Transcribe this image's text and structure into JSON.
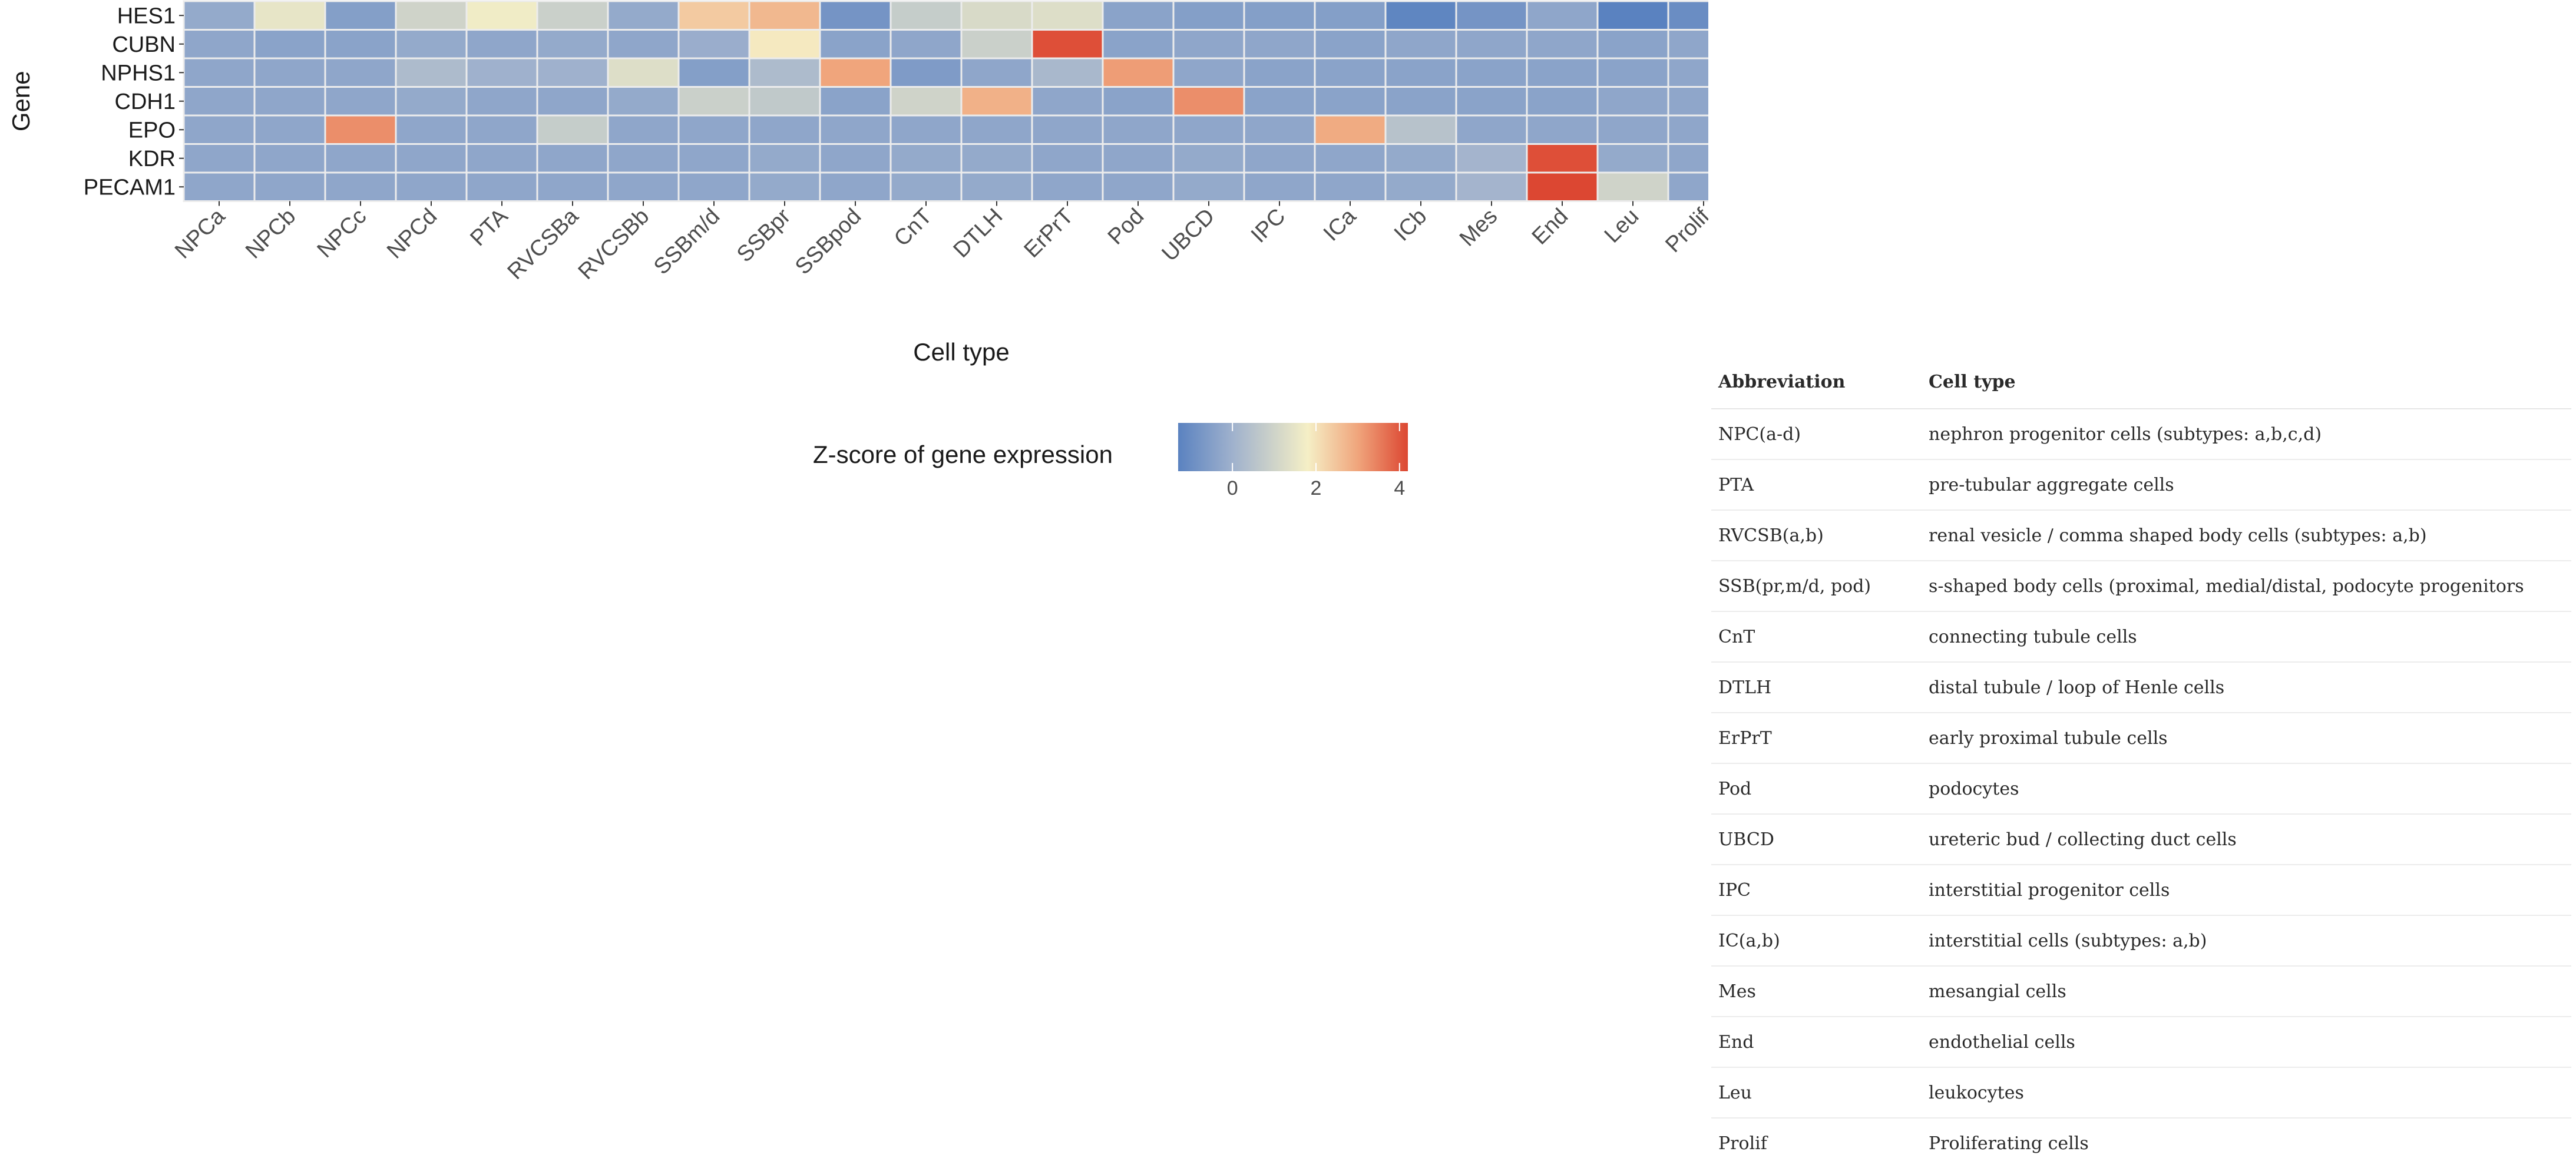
{
  "chart_data": {
    "type": "heatmap",
    "title": "",
    "xlabel": "Cell type",
    "ylabel": "Gene",
    "x_categories": [
      "NPCa",
      "NPCb",
      "NPCc",
      "NPCd",
      "PTA",
      "RVCSBa",
      "RVCSBb",
      "SSBm/d",
      "SSBpr",
      "SSBpod",
      "CnT",
      "DTLH",
      "ErPrT",
      "Pod",
      "UBCD",
      "IPC",
      "ICa",
      "ICb",
      "Mes",
      "End",
      "Leu",
      "Prolif"
    ],
    "y_categories": [
      "HES1",
      "CUBN",
      "NPHS1",
      "CDH1",
      "EPO",
      "KDR",
      "PECAM1"
    ],
    "values": [
      [
        -0.2,
        1.5,
        -0.5,
        1.0,
        1.7,
        0.9,
        -0.2,
        2.4,
        2.7,
        -0.8,
        0.8,
        1.2,
        1.3,
        -0.4,
        -0.5,
        -0.5,
        -0.5,
        -1.2,
        -0.8,
        -0.3,
        -1.3,
        -1.0
      ],
      [
        -0.3,
        -0.4,
        -0.4,
        -0.2,
        -0.3,
        -0.2,
        -0.3,
        -0.1,
        1.9,
        -0.4,
        -0.3,
        0.9,
        4.1,
        -0.4,
        -0.3,
        -0.3,
        -0.4,
        -0.3,
        -0.3,
        -0.3,
        -0.4,
        -0.3
      ],
      [
        -0.3,
        -0.3,
        -0.3,
        0.3,
        0.0,
        0.0,
        1.3,
        -0.5,
        0.3,
        3.0,
        -0.6,
        -0.3,
        0.2,
        3.1,
        -0.3,
        -0.4,
        -0.4,
        -0.4,
        -0.4,
        -0.4,
        -0.4,
        -0.3
      ],
      [
        -0.3,
        -0.3,
        -0.3,
        -0.2,
        -0.3,
        -0.3,
        -0.2,
        0.9,
        0.7,
        -0.4,
        1.0,
        2.8,
        -0.3,
        -0.4,
        3.3,
        -0.4,
        -0.4,
        -0.4,
        -0.4,
        -0.4,
        -0.3,
        -0.3
      ],
      [
        -0.3,
        -0.3,
        3.3,
        -0.3,
        -0.3,
        0.8,
        -0.3,
        -0.3,
        -0.3,
        -0.3,
        -0.3,
        -0.3,
        -0.3,
        -0.3,
        -0.3,
        -0.3,
        2.9,
        0.5,
        -0.3,
        -0.3,
        -0.3,
        -0.3
      ],
      [
        -0.3,
        -0.3,
        -0.3,
        -0.3,
        -0.3,
        -0.3,
        -0.3,
        -0.3,
        -0.2,
        -0.3,
        -0.2,
        -0.2,
        -0.3,
        -0.3,
        -0.2,
        -0.3,
        -0.3,
        -0.2,
        0.1,
        4.1,
        -0.2,
        -0.3
      ],
      [
        -0.3,
        -0.3,
        -0.3,
        -0.3,
        -0.3,
        -0.3,
        -0.3,
        -0.3,
        -0.2,
        -0.3,
        -0.2,
        -0.2,
        -0.3,
        -0.3,
        -0.2,
        -0.3,
        -0.3,
        -0.2,
        0.1,
        4.2,
        1.0,
        -0.3
      ]
    ],
    "color_scale": {
      "label": "Z-score of gene expression",
      "range": [
        -1.3,
        4.2
      ],
      "ticks": [
        0,
        2,
        4
      ],
      "stops": [
        {
          "value": -1.3,
          "color": "#5a82c0"
        },
        {
          "value": 0,
          "color": "#9fb1cd"
        },
        {
          "value": 1.8,
          "color": "#f5efc6"
        },
        {
          "value": 3.0,
          "color": "#f0a57c"
        },
        {
          "value": 4.2,
          "color": "#dc4732"
        }
      ]
    }
  },
  "abbreviations": {
    "header": {
      "abbr": "Abbreviation",
      "type": "Cell type"
    },
    "rows": [
      {
        "abbr": "NPC(a-d)",
        "type": "nephron progenitor cells (subtypes: a,b,c,d)"
      },
      {
        "abbr": "PTA",
        "type": "pre-tubular aggregate cells"
      },
      {
        "abbr": "RVCSB(a,b)",
        "type": "renal vesicle / comma shaped body cells (subtypes: a,b)"
      },
      {
        "abbr": "SSB(pr,m/d, pod)",
        "type": "s-shaped body cells (proximal, medial/distal, podocyte progenitors"
      },
      {
        "abbr": "CnT",
        "type": "connecting tubule cells"
      },
      {
        "abbr": "DTLH",
        "type": "distal tubule / loop of Henle cells"
      },
      {
        "abbr": "ErPrT",
        "type": "early proximal tubule cells"
      },
      {
        "abbr": "Pod",
        "type": "podocytes"
      },
      {
        "abbr": "UBCD",
        "type": "ureteric bud / collecting duct cells"
      },
      {
        "abbr": "IPC",
        "type": "interstitial progenitor cells"
      },
      {
        "abbr": "IC(a,b)",
        "type": "interstitial cells (subtypes: a,b)"
      },
      {
        "abbr": "Mes",
        "type": "mesangial cells"
      },
      {
        "abbr": "End",
        "type": "endothelial cells"
      },
      {
        "abbr": "Leu",
        "type": "leukocytes"
      },
      {
        "abbr": "Prolif",
        "type": "Proliferating cells"
      }
    ]
  }
}
